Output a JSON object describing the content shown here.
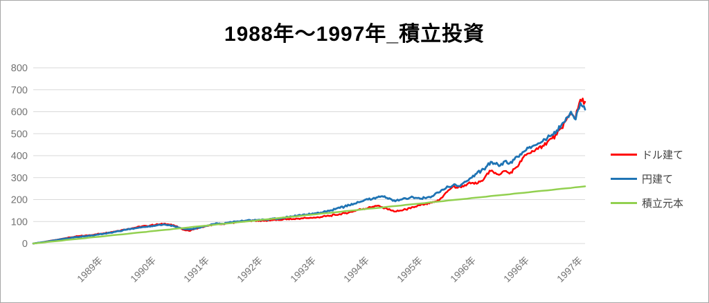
{
  "title": "1988年〜1997年_積立投資",
  "axes": {
    "y_ticks": [
      "0",
      "100",
      "200",
      "300",
      "400",
      "500",
      "600",
      "700",
      "800"
    ],
    "x_tick_labels": [
      "1989年",
      "1990年",
      "1991年",
      "1992年",
      "1993年",
      "1994年",
      "1995年",
      "1996年",
      "1996年",
      "1997年"
    ]
  },
  "legend": [
    {
      "label": "ドル建て",
      "color": "#FF0000"
    },
    {
      "label": "円建て",
      "color": "#1F74B4"
    },
    {
      "label": "積立元本",
      "color": "#92D050"
    }
  ],
  "colors": {
    "grid": "#D9D9D9",
    "axis_label": "#737373",
    "legend_text": "#404040",
    "border": "#A6A6A6",
    "background": "#FFFFFF",
    "title": "#000000"
  },
  "chart_data": {
    "type": "line",
    "title": "1988年〜1997年_積立投資",
    "x_unit": "months from 1988-01 to 1997-10",
    "x_tick_labels": [
      "1989年",
      "1990年",
      "1991年",
      "1992年",
      "1993年",
      "1994年",
      "1995年",
      "1996年",
      "1996年",
      "1997年"
    ],
    "ylim": [
      0,
      800
    ],
    "y_ticks": [
      0,
      100,
      200,
      300,
      400,
      500,
      600,
      700,
      800
    ],
    "grid": "horizontal",
    "legend_position": "right",
    "series": [
      {
        "name": "ドル建て",
        "color": "#FF0000",
        "noisy": true,
        "values": [
          0,
          3,
          6,
          10,
          14,
          17,
          21,
          25,
          28,
          32,
          34,
          36,
          38,
          41,
          44,
          47,
          50,
          54,
          58,
          62,
          66,
          70,
          74,
          78,
          80,
          83,
          86,
          88,
          90,
          86,
          80,
          72,
          62,
          58,
          64,
          70,
          74,
          80,
          86,
          90,
          88,
          92,
          94,
          96,
          99,
          101,
          103,
          104,
          104,
          103,
          106,
          108,
          107,
          110,
          112,
          111,
          113,
          115,
          116,
          117,
          118,
          121,
          124,
          127,
          130,
          134,
          138,
          142,
          148,
          154,
          158,
          162,
          168,
          172,
          166,
          158,
          150,
          146,
          150,
          155,
          160,
          168,
          174,
          178,
          182,
          188,
          196,
          218,
          242,
          260,
          254,
          262,
          270,
          276,
          272,
          285,
          310,
          330,
          322,
          315,
          330,
          318,
          340,
          360,
          395,
          410,
          420,
          430,
          445,
          462,
          478,
          495,
          525,
          562,
          592,
          575,
          655,
          645
        ]
      },
      {
        "name": "円建て",
        "color": "#1F74B4",
        "noisy": true,
        "values": [
          0,
          3,
          6,
          9,
          13,
          16,
          20,
          23,
          26,
          29,
          31,
          33,
          35,
          38,
          42,
          45,
          48,
          52,
          56,
          60,
          64,
          68,
          71,
          74,
          76,
          79,
          82,
          84,
          86,
          83,
          78,
          72,
          66,
          64,
          68,
          72,
          76,
          82,
          88,
          92,
          90,
          94,
          97,
          99,
          102,
          104,
          106,
          108,
          108,
          108,
          111,
          114,
          114,
          118,
          121,
          123,
          126,
          129,
          132,
          134,
          137,
          141,
          146,
          151,
          156,
          162,
          168,
          174,
          181,
          188,
          194,
          200,
          205,
          210,
          215,
          208,
          200,
          196,
          200,
          205,
          210,
          208,
          204,
          208,
          212,
          220,
          232,
          245,
          258,
          265,
          262,
          272,
          285,
          300,
          318,
          332,
          348,
          372,
          362,
          355,
          375,
          365,
          382,
          395,
          418,
          435,
          445,
          455,
          465,
          480,
          495,
          515,
          540,
          572,
          600,
          565,
          640,
          610
        ]
      },
      {
        "name": "積立元本",
        "color": "#92D050",
        "noisy": false,
        "values": [
          0,
          2,
          4,
          7,
          9,
          11,
          13,
          16,
          18,
          20,
          22,
          24,
          27,
          29,
          31,
          33,
          36,
          38,
          40,
          42,
          44,
          47,
          49,
          51,
          53,
          56,
          58,
          60,
          62,
          64,
          67,
          69,
          71,
          73,
          76,
          78,
          80,
          82,
          84,
          87,
          89,
          91,
          93,
          96,
          98,
          100,
          102,
          104,
          107,
          109,
          111,
          113,
          116,
          118,
          120,
          122,
          124,
          127,
          129,
          131,
          133,
          136,
          138,
          140,
          142,
          144,
          147,
          149,
          151,
          153,
          156,
          158,
          160,
          162,
          164,
          167,
          169,
          171,
          173,
          176,
          178,
          180,
          182,
          184,
          187,
          189,
          191,
          193,
          196,
          198,
          200,
          202,
          204,
          207,
          209,
          211,
          213,
          216,
          218,
          220,
          222,
          224,
          227,
          229,
          231,
          233,
          236,
          238,
          240,
          242,
          244,
          247,
          249,
          251,
          253,
          256,
          258,
          260
        ]
      }
    ]
  }
}
